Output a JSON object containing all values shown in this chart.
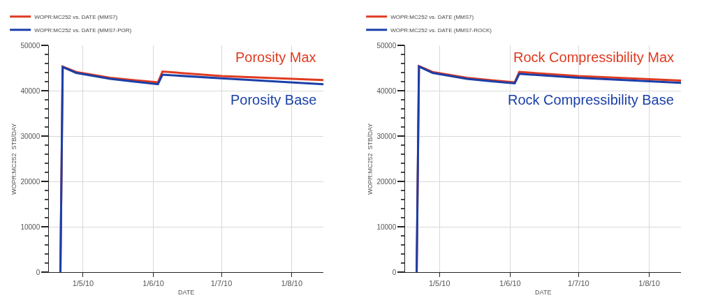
{
  "chart_data": [
    {
      "type": "line",
      "xlabel": "DATE",
      "ylabel": "WOPR:MC252  STB/DAY",
      "legend": "top left",
      "grid": true,
      "x": [
        "2010-04-21",
        "2010-04-22",
        "2010-04-28",
        "2010-05-13",
        "2010-05-23",
        "2010-06-03",
        "2010-06-05",
        "2010-07-01",
        "2010-08-15"
      ],
      "series": [
        {
          "name": "WOPR:MC252 vs. DATE (MMS7)",
          "color": "#e03a20",
          "values": [
            0,
            45400,
            44200,
            42900,
            42400,
            41900,
            44300,
            43300,
            42400
          ]
        },
        {
          "name": "WOPR:MC252 vs. DATE (MMS7-POR)",
          "color": "#1a3fa8",
          "values": [
            0,
            45300,
            44000,
            42700,
            42100,
            41500,
            43600,
            42800,
            41500
          ]
        }
      ],
      "xlim": [
        "2010-04-16",
        "2010-08-15"
      ],
      "xticks": [
        {
          "value": "2010-05-01",
          "label": "1/5/10"
        },
        {
          "value": "2010-06-01",
          "label": "1/6/10"
        },
        {
          "value": "2010-07-01",
          "label": "1/7/10"
        },
        {
          "value": "2010-08-01",
          "label": "1/8/10"
        }
      ],
      "ylim": [
        0,
        50000
      ],
      "yticks": [
        0,
        10000,
        20000,
        30000,
        40000,
        50000
      ],
      "annotations": [
        "Porosity Max",
        "Porosity Base"
      ]
    },
    {
      "type": "line",
      "xlabel": "DATE",
      "ylabel": "WOPR:MC252  STB/DAY",
      "legend": "top left",
      "grid": true,
      "x": [
        "2010-04-21",
        "2010-04-22",
        "2010-04-28",
        "2010-05-13",
        "2010-05-23",
        "2010-06-03",
        "2010-06-05",
        "2010-07-01",
        "2010-08-15"
      ],
      "series": [
        {
          "name": "WOPR:MC252 vs. DATE (MMS7)",
          "color": "#e03a20",
          "values": [
            0,
            45500,
            44200,
            42900,
            42400,
            41900,
            44200,
            43300,
            42300
          ]
        },
        {
          "name": "WOPR:MC252 vs. DATE (MMS7-ROCK)",
          "color": "#1a3fa8",
          "values": [
            0,
            45400,
            44000,
            42700,
            42200,
            41700,
            43800,
            42900,
            41800
          ]
        }
      ],
      "xlim": [
        "2010-04-16",
        "2010-08-15"
      ],
      "xticks": [
        {
          "value": "2010-05-01",
          "label": "1/5/10"
        },
        {
          "value": "2010-06-01",
          "label": "1/6/10"
        },
        {
          "value": "2010-07-01",
          "label": "1/7/10"
        },
        {
          "value": "2010-08-01",
          "label": "1/8/10"
        }
      ],
      "ylim": [
        0,
        50000
      ],
      "yticks": [
        0,
        10000,
        20000,
        30000,
        40000,
        50000
      ],
      "annotations": [
        "Rock Compressibility Max",
        "Rock Compressibility Base"
      ]
    }
  ]
}
